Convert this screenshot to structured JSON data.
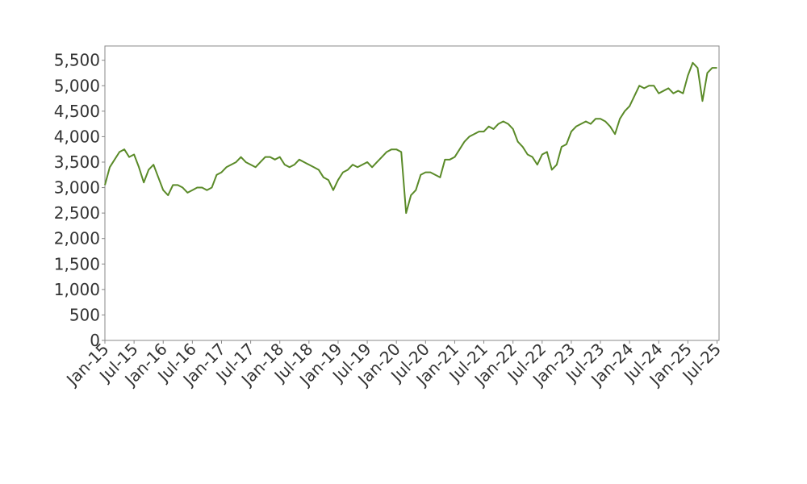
{
  "chart_data": {
    "type": "line",
    "x": [
      "Jan-15",
      "Feb-15",
      "Mar-15",
      "Apr-15",
      "May-15",
      "Jun-15",
      "Jul-15",
      "Aug-15",
      "Sep-15",
      "Oct-15",
      "Nov-15",
      "Dec-15",
      "Jan-16",
      "Feb-16",
      "Mar-16",
      "Apr-16",
      "May-16",
      "Jun-16",
      "Jul-16",
      "Aug-16",
      "Sep-16",
      "Oct-16",
      "Nov-16",
      "Dec-16",
      "Jan-17",
      "Feb-17",
      "Mar-17",
      "Apr-17",
      "May-17",
      "Jun-17",
      "Jul-17",
      "Aug-17",
      "Sep-17",
      "Oct-17",
      "Nov-17",
      "Dec-17",
      "Jan-18",
      "Feb-18",
      "Mar-18",
      "Apr-18",
      "May-18",
      "Jun-18",
      "Jul-18",
      "Aug-18",
      "Sep-18",
      "Oct-18",
      "Nov-18",
      "Dec-18",
      "Jan-19",
      "Feb-19",
      "Mar-19",
      "Apr-19",
      "May-19",
      "Jun-19",
      "Jul-19",
      "Aug-19",
      "Sep-19",
      "Oct-19",
      "Nov-19",
      "Dec-19",
      "Jan-20",
      "Feb-20",
      "Mar-20",
      "Apr-20",
      "May-20",
      "Jun-20",
      "Jul-20",
      "Aug-20",
      "Sep-20",
      "Oct-20",
      "Nov-20",
      "Dec-20",
      "Jan-21",
      "Feb-21",
      "Mar-21",
      "Apr-21",
      "May-21",
      "Jun-21",
      "Jul-21",
      "Aug-21",
      "Sep-21",
      "Oct-21",
      "Nov-21",
      "Dec-21",
      "Jan-22",
      "Feb-22",
      "Mar-22",
      "Apr-22",
      "May-22",
      "Jun-22",
      "Jul-22",
      "Aug-22",
      "Sep-22",
      "Oct-22",
      "Nov-22",
      "Dec-22",
      "Jan-23",
      "Feb-23",
      "Mar-23",
      "Apr-23",
      "May-23",
      "Jun-23",
      "Jul-23",
      "Aug-23",
      "Sep-23",
      "Oct-23",
      "Nov-23",
      "Dec-23",
      "Jan-24",
      "Feb-24",
      "Mar-24",
      "Apr-24",
      "May-24",
      "Jun-24",
      "Jul-24",
      "Aug-24",
      "Sep-24",
      "Oct-24",
      "Nov-24",
      "Dec-24",
      "Jan-25",
      "Feb-25",
      "Mar-25",
      "Apr-25",
      "May-25",
      "Jun-25",
      "Jul-25"
    ],
    "values": [
      3050,
      3400,
      3550,
      3700,
      3750,
      3600,
      3650,
      3400,
      3100,
      3350,
      3450,
      3200,
      2950,
      2850,
      3050,
      3050,
      3000,
      2900,
      2950,
      3000,
      3000,
      2950,
      3000,
      3250,
      3300,
      3400,
      3450,
      3500,
      3600,
      3500,
      3450,
      3400,
      3500,
      3600,
      3600,
      3550,
      3600,
      3450,
      3400,
      3450,
      3550,
      3500,
      3450,
      3400,
      3350,
      3200,
      3150,
      2950,
      3150,
      3300,
      3350,
      3450,
      3400,
      3450,
      3500,
      3400,
      3500,
      3600,
      3700,
      3750,
      3750,
      3700,
      2500,
      2850,
      2950,
      3250,
      3300,
      3300,
      3250,
      3200,
      3550,
      3550,
      3600,
      3750,
      3900,
      4000,
      4050,
      4100,
      4100,
      4200,
      4150,
      4250,
      4300,
      4250,
      4150,
      3900,
      3800,
      3650,
      3600,
      3450,
      3650,
      3700,
      3350,
      3450,
      3800,
      3850,
      4100,
      4200,
      4250,
      4300,
      4250,
      4350,
      4350,
      4300,
      4200,
      4050,
      4350,
      4500,
      4600,
      4800,
      5000,
      4950,
      5000,
      5000,
      4850,
      4900,
      4950,
      4850,
      4900,
      4850,
      5200,
      5450,
      5350,
      4700,
      5250,
      5350,
      5350
    ],
    "color": "#5a8a28",
    "xticks": [
      "Jan-15",
      "Jul-15",
      "Jan-16",
      "Jul-16",
      "Jan-17",
      "Jul-17",
      "Jan-18",
      "Jul-18",
      "Jan-19",
      "Jul-19",
      "Jan-20",
      "Jul-20",
      "Jan-21",
      "Jul-21",
      "Jan-22",
      "Jul-22",
      "Jan-23",
      "Jul-23",
      "Jan-24",
      "Jul-24",
      "Jan-25",
      "Jul-25"
    ],
    "ylim": [
      0,
      5780
    ],
    "yticks": [
      0,
      500,
      {
        "value": 1000,
        "label": "1,000"
      },
      {
        "value": 1500,
        "label": "1,500"
      },
      {
        "value": 2000,
        "label": "2,000"
      },
      {
        "value": 2500,
        "label": "2,500"
      },
      {
        "value": 3000,
        "label": "3,000"
      },
      {
        "value": 3500,
        "label": "3,500"
      },
      {
        "value": 4000,
        "label": "4,000"
      },
      {
        "value": 4500,
        "label": "4,500"
      },
      {
        "value": 5000,
        "label": "5,000"
      },
      {
        "value": 5500,
        "label": "5,500"
      }
    ]
  }
}
